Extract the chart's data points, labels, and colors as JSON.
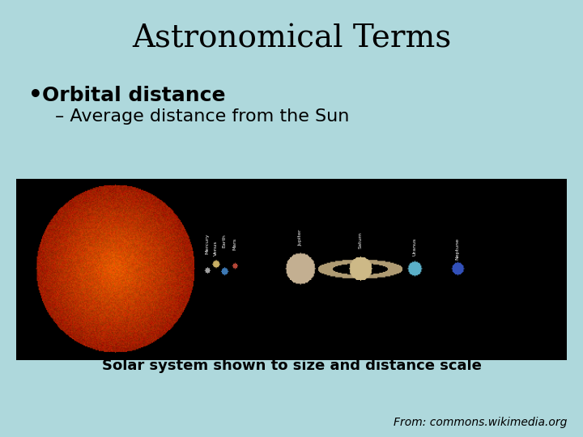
{
  "title": "Astronomical Terms",
  "bullet_main": "Orbital distance",
  "bullet_sub": "– Average distance from the Sun",
  "caption": "Solar system shown to size and distance scale",
  "source": "From: commons.wikimedia.org",
  "bg_color": "#aed8dc",
  "title_fontsize": 28,
  "bullet_main_fontsize": 18,
  "bullet_sub_fontsize": 16,
  "caption_fontsize": 13,
  "source_fontsize": 10
}
